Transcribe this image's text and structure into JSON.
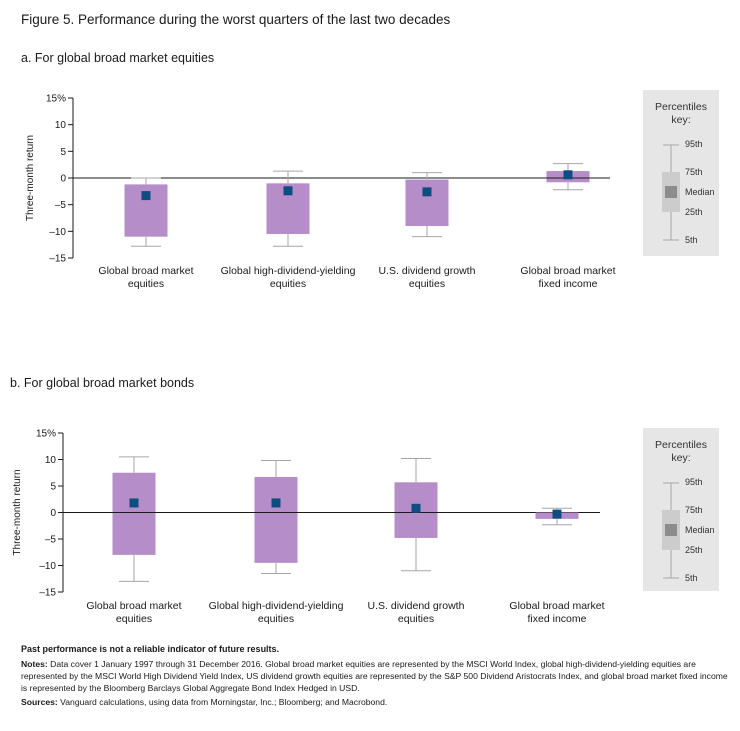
{
  "title": "Figure 5. Performance during the worst quarters of the last two decades",
  "panels": {
    "a": {
      "title": "a. For global broad market equities"
    },
    "b": {
      "title": "b. For global broad market bonds"
    }
  },
  "key": {
    "title_line1": "Percentiles",
    "title_line2": "key:",
    "labels": [
      "95th",
      "75th",
      "Median",
      "25th",
      "5th"
    ]
  },
  "colors": {
    "box": "#b58ec9",
    "median": "#0d4d82",
    "whisker": "#a6a6a6",
    "axis": "#1a1a1a",
    "key_bg": "#e6e6e6",
    "key_box": "#cccccc",
    "key_median": "#8c8c8c"
  },
  "chart_data": [
    {
      "type": "box",
      "title": "a. For global broad market equities",
      "ylabel": "Three-month return",
      "ylim": [
        -15,
        15
      ],
      "yticks": [
        "15%",
        "10",
        "5",
        "0",
        "-5",
        "-10",
        "-15"
      ],
      "categories": [
        [
          "Global broad market",
          "equities"
        ],
        [
          "Global high-dividend-yielding",
          "equities"
        ],
        [
          "U.S. dividend growth",
          "equities"
        ],
        [
          "Global broad market",
          "fixed income"
        ]
      ],
      "series": [
        {
          "p5": -12.8,
          "p25": -11.0,
          "median": -3.3,
          "p75": -1.2,
          "p95": 0.0
        },
        {
          "p5": -12.8,
          "p25": -10.5,
          "median": -2.4,
          "p75": -1.0,
          "p95": 1.3
        },
        {
          "p5": -11.0,
          "p25": -9.0,
          "median": -2.6,
          "p75": -0.3,
          "p95": 1.0
        },
        {
          "p5": -2.2,
          "p25": -0.8,
          "median": 0.6,
          "p75": 1.3,
          "p95": 2.7
        }
      ]
    },
    {
      "type": "box",
      "title": "b. For global broad market bonds",
      "ylabel": "Three-month return",
      "ylim": [
        -15,
        15
      ],
      "yticks": [
        "15%",
        "10",
        "5",
        "0",
        "-5",
        "-10",
        "-15"
      ],
      "categories": [
        [
          "Global broad market",
          "equities"
        ],
        [
          "Global high-dividend-yielding",
          "equities"
        ],
        [
          "U.S. dividend growth",
          "equities"
        ],
        [
          "Global broad market",
          "fixed income"
        ]
      ],
      "series": [
        {
          "p5": -13.0,
          "p25": -8.0,
          "median": 1.8,
          "p75": 7.5,
          "p95": 10.5
        },
        {
          "p5": -11.5,
          "p25": -9.5,
          "median": 1.8,
          "p75": 6.7,
          "p95": 9.8
        },
        {
          "p5": -11.0,
          "p25": -4.8,
          "median": 0.8,
          "p75": 5.7,
          "p95": 10.2
        },
        {
          "p5": -2.3,
          "p25": -1.2,
          "median": -0.3,
          "p75": 0.0,
          "p95": 0.8
        }
      ]
    }
  ],
  "notes": {
    "past_performance": "Past performance is not a reliable indicator of future results.",
    "notes_label": "Notes:",
    "notes_text": "Data cover 1 January 1997 through 31 December 2016. Global broad market equities are represented by the MSCI World Index, global high-dividend-yielding equities are represented by the MSCI World High Dividend Yield Index, US dividend growth equities are represented by the S&P 500 Dividend Aristocrats Index, and global broad market fixed income is represented by the Bloomberg Barclays Global Aggregate Bond Index Hedged in USD.",
    "sources_label": "Sources:",
    "sources_text": "Vanguard calculations, using data from Morningstar, Inc.; Bloomberg; and Macrobond."
  }
}
